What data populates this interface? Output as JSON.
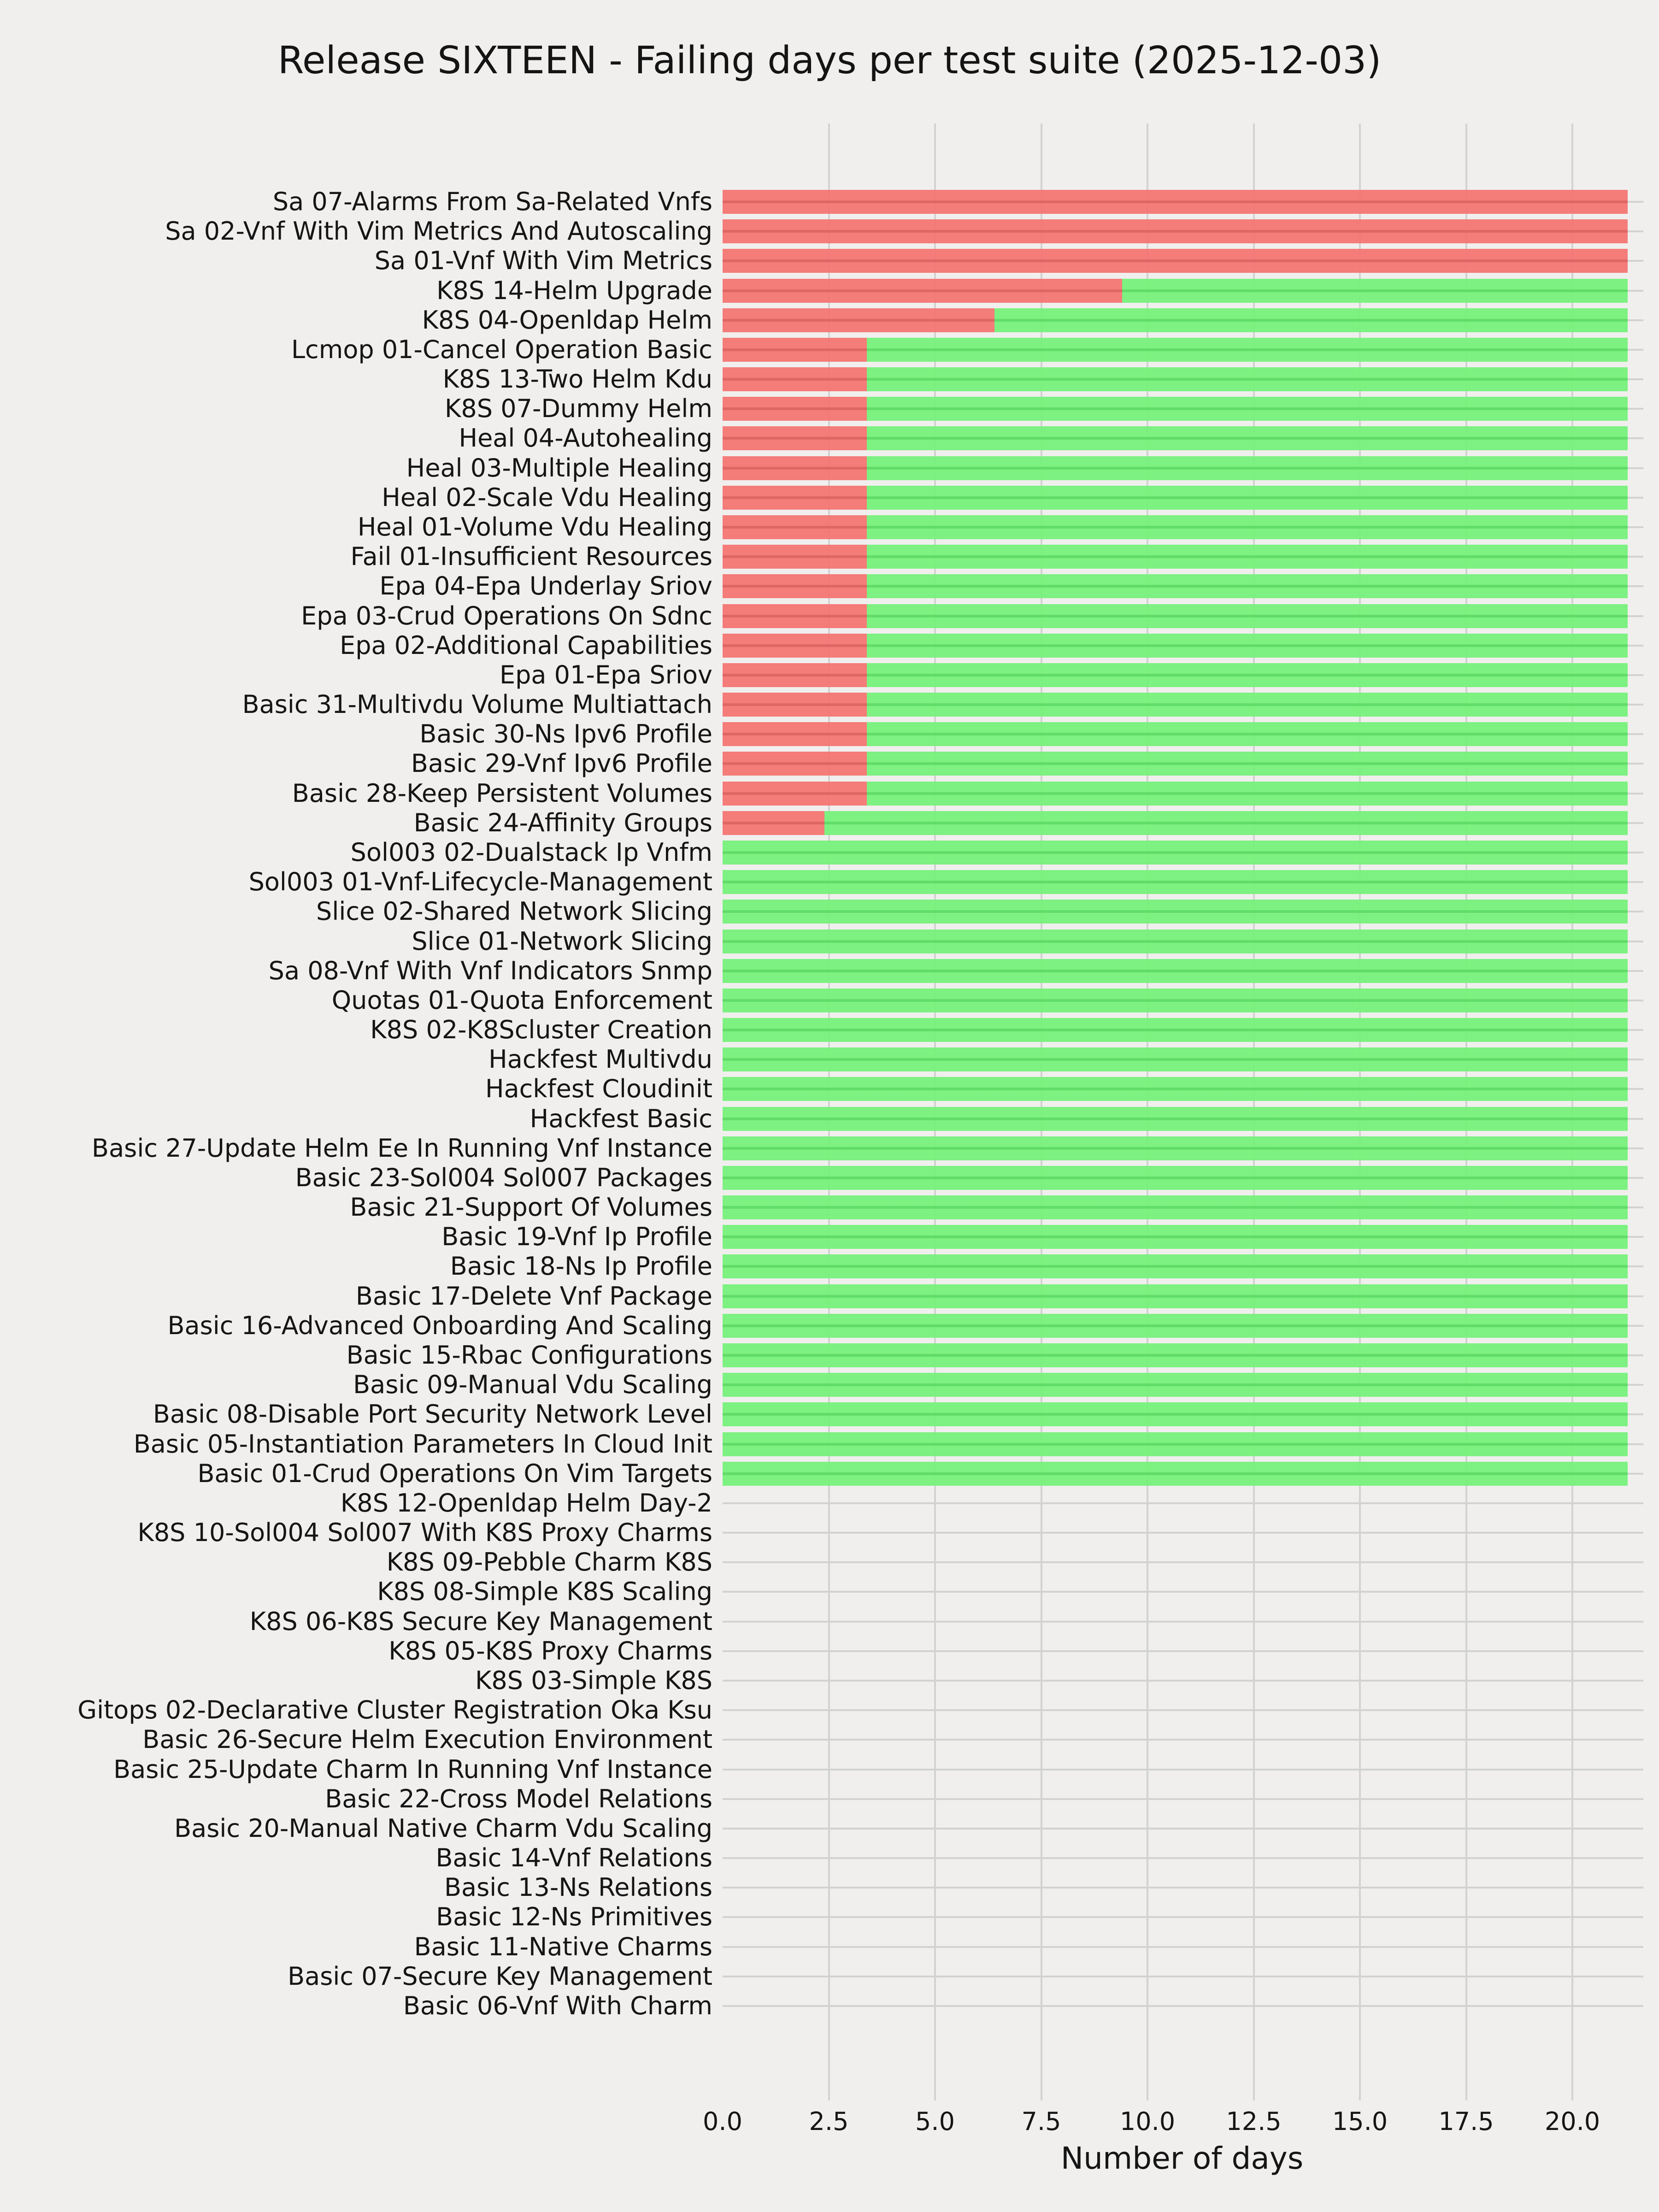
{
  "chart_data": {
    "type": "bar",
    "orientation": "horizontal",
    "stacked": true,
    "title": "Release SIXTEEN - Failing days per test suite (2025-12-03)",
    "xlabel": "Number of days",
    "ylabel": "",
    "xticks": [
      0.0,
      2.5,
      5.0,
      7.5,
      10.0,
      12.5,
      15.0,
      17.5,
      20.0
    ],
    "xtick_labels": [
      "0.0",
      "2.5",
      "5.0",
      "7.5",
      "10.0",
      "12.5",
      "15.0",
      "17.5",
      "20.0"
    ],
    "xlim": [
      0,
      21.7
    ],
    "grid": true,
    "legend": false,
    "window_total_days": 21.3,
    "series": [
      {
        "name": "failing_days",
        "color": "#f47673"
      },
      {
        "name": "passing_days",
        "color": "#77f17b"
      }
    ],
    "categories": [
      "Sa 07-Alarms From Sa-Related Vnfs",
      "Sa 02-Vnf With Vim Metrics And Autoscaling",
      "Sa 01-Vnf With Vim Metrics",
      "K8S 14-Helm Upgrade",
      "K8S 04-Openldap Helm",
      "Lcmop 01-Cancel Operation Basic",
      "K8S 13-Two Helm Kdu",
      "K8S 07-Dummy Helm",
      "Heal 04-Autohealing",
      "Heal 03-Multiple Healing",
      "Heal 02-Scale Vdu Healing",
      "Heal 01-Volume Vdu Healing",
      "Fail 01-Insufficient Resources",
      "Epa 04-Epa Underlay Sriov",
      "Epa 03-Crud Operations On Sdnc",
      "Epa 02-Additional Capabilities",
      "Epa 01-Epa Sriov",
      "Basic 31-Multivdu Volume Multiattach",
      "Basic 30-Ns Ipv6 Profile",
      "Basic 29-Vnf Ipv6 Profile",
      "Basic 28-Keep Persistent Volumes",
      "Basic 24-Affinity Groups",
      "Sol003 02-Dualstack Ip Vnfm",
      "Sol003 01-Vnf-Lifecycle-Management",
      "Slice 02-Shared Network Slicing",
      "Slice 01-Network Slicing",
      "Sa 08-Vnf With Vnf Indicators Snmp",
      "Quotas 01-Quota Enforcement",
      "K8S 02-K8Scluster Creation",
      "Hackfest Multivdu",
      "Hackfest Cloudinit",
      "Hackfest Basic",
      "Basic 27-Update Helm Ee In Running Vnf Instance",
      "Basic 23-Sol004 Sol007 Packages",
      "Basic 21-Support Of Volumes",
      "Basic 19-Vnf Ip Profile",
      "Basic 18-Ns Ip Profile",
      "Basic 17-Delete Vnf Package",
      "Basic 16-Advanced Onboarding And Scaling",
      "Basic 15-Rbac Configurations",
      "Basic 09-Manual Vdu Scaling",
      "Basic 08-Disable Port Security Network Level",
      "Basic 05-Instantiation Parameters In Cloud Init",
      "Basic 01-Crud Operations On Vim Targets",
      "K8S 12-Openldap Helm Day-2",
      "K8S 10-Sol004 Sol007 With K8S Proxy Charms",
      "K8S 09-Pebble Charm K8S",
      "K8S 08-Simple K8S Scaling",
      "K8S 06-K8S Secure Key Management",
      "K8S 05-K8S Proxy Charms",
      "K8S 03-Simple K8S",
      "Gitops 02-Declarative Cluster Registration Oka Ksu",
      "Basic 26-Secure Helm Execution Environment",
      "Basic 25-Update Charm In Running Vnf Instance",
      "Basic 22-Cross Model Relations",
      "Basic 20-Manual Native Charm Vdu Scaling",
      "Basic 14-Vnf Relations",
      "Basic 13-Ns Relations",
      "Basic 12-Ns Primitives",
      "Basic 11-Native Charms",
      "Basic 07-Secure Key Management",
      "Basic 06-Vnf With Charm"
    ],
    "failing_days": [
      21.3,
      21.3,
      21.3,
      9.4,
      6.4,
      3.4,
      3.4,
      3.4,
      3.4,
      3.4,
      3.4,
      3.4,
      3.4,
      3.4,
      3.4,
      3.4,
      3.4,
      3.4,
      3.4,
      3.4,
      3.4,
      2.4,
      0,
      0,
      0,
      0,
      0,
      0,
      0,
      0,
      0,
      0,
      0,
      0,
      0,
      0,
      0,
      0,
      0,
      0,
      0,
      0,
      0,
      0,
      0,
      0,
      0,
      0,
      0,
      0,
      0,
      0,
      0,
      0,
      0,
      0,
      0,
      0,
      0,
      0,
      0,
      0
    ],
    "passing_days": [
      0,
      0,
      0,
      11.9,
      14.9,
      17.9,
      17.9,
      17.9,
      17.9,
      17.9,
      17.9,
      17.9,
      17.9,
      17.9,
      17.9,
      17.9,
      17.9,
      17.9,
      17.9,
      17.9,
      17.9,
      18.9,
      21.3,
      21.3,
      21.3,
      21.3,
      21.3,
      21.3,
      21.3,
      21.3,
      21.3,
      21.3,
      21.3,
      21.3,
      21.3,
      21.3,
      21.3,
      21.3,
      21.3,
      21.3,
      21.3,
      21.3,
      21.3,
      21.3,
      0,
      0,
      0,
      0,
      0,
      0,
      0,
      0,
      0,
      0,
      0,
      0,
      0,
      0,
      0,
      0,
      0,
      0
    ]
  },
  "colors": {
    "background": "#f0efee",
    "grid": "#d2d2d2",
    "failing": "#f47673",
    "failing_divider": "#e0605e",
    "passing": "#77f17b",
    "passing_divider": "#5cdd63",
    "text": "#151515"
  }
}
